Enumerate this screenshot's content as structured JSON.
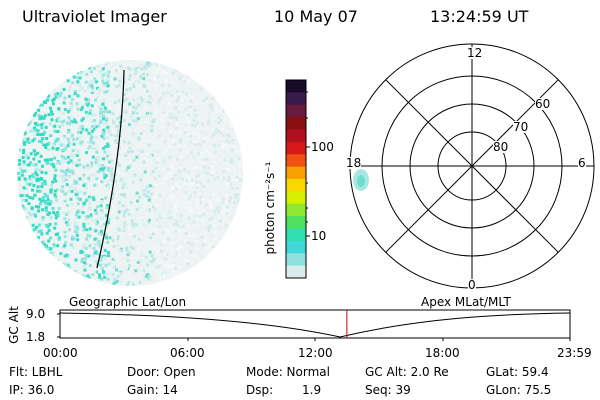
{
  "header": {
    "instrument": "Ultraviolet Imager",
    "date": "10 May 07",
    "time": "13:24:59 UT"
  },
  "colorbar": {
    "unit_label": "photon cm⁻²s⁻¹",
    "ticks": [
      "100",
      "10"
    ],
    "colors": [
      "#1a0a2a",
      "#3a1a4a",
      "#6a1a3a",
      "#8a1010",
      "#b01020",
      "#d81818",
      "#f05010",
      "#f8a000",
      "#f8d800",
      "#d8f000",
      "#90e830",
      "#50e060",
      "#30e0b0",
      "#40d8d8",
      "#90e0e0",
      "#d8ecec"
    ]
  },
  "polar_grid": {
    "mlt_labels": [
      "12",
      "18",
      "6",
      "0"
    ],
    "lat_labels": [
      "60",
      "70",
      "80"
    ]
  },
  "timeline": {
    "y_axis_label": "GC Alt",
    "y_ticks": [
      "9.0",
      "1.8"
    ],
    "left_title": "Geographic Lat/Lon",
    "right_title": "Apex MLat/MLT",
    "x_ticks": [
      "00:00",
      "06:00",
      "12:00",
      "18:00",
      "23:59"
    ],
    "current_time_fraction": 0.5625,
    "line_color": "#cc0000"
  },
  "status": {
    "flt": "Flt: LBHL",
    "door": "Door: Open",
    "mode": "Mode: Normal",
    "gc_alt": "GC Alt: 2.0 Re",
    "glat": "GLat: 59.4",
    "ip": "IP: 36.0",
    "gain": "Gain: 14",
    "dsp_label": "Dsp:",
    "dsp_value": "1.9",
    "seq": "Seq: 39",
    "glon": "GLon: 75.5"
  }
}
